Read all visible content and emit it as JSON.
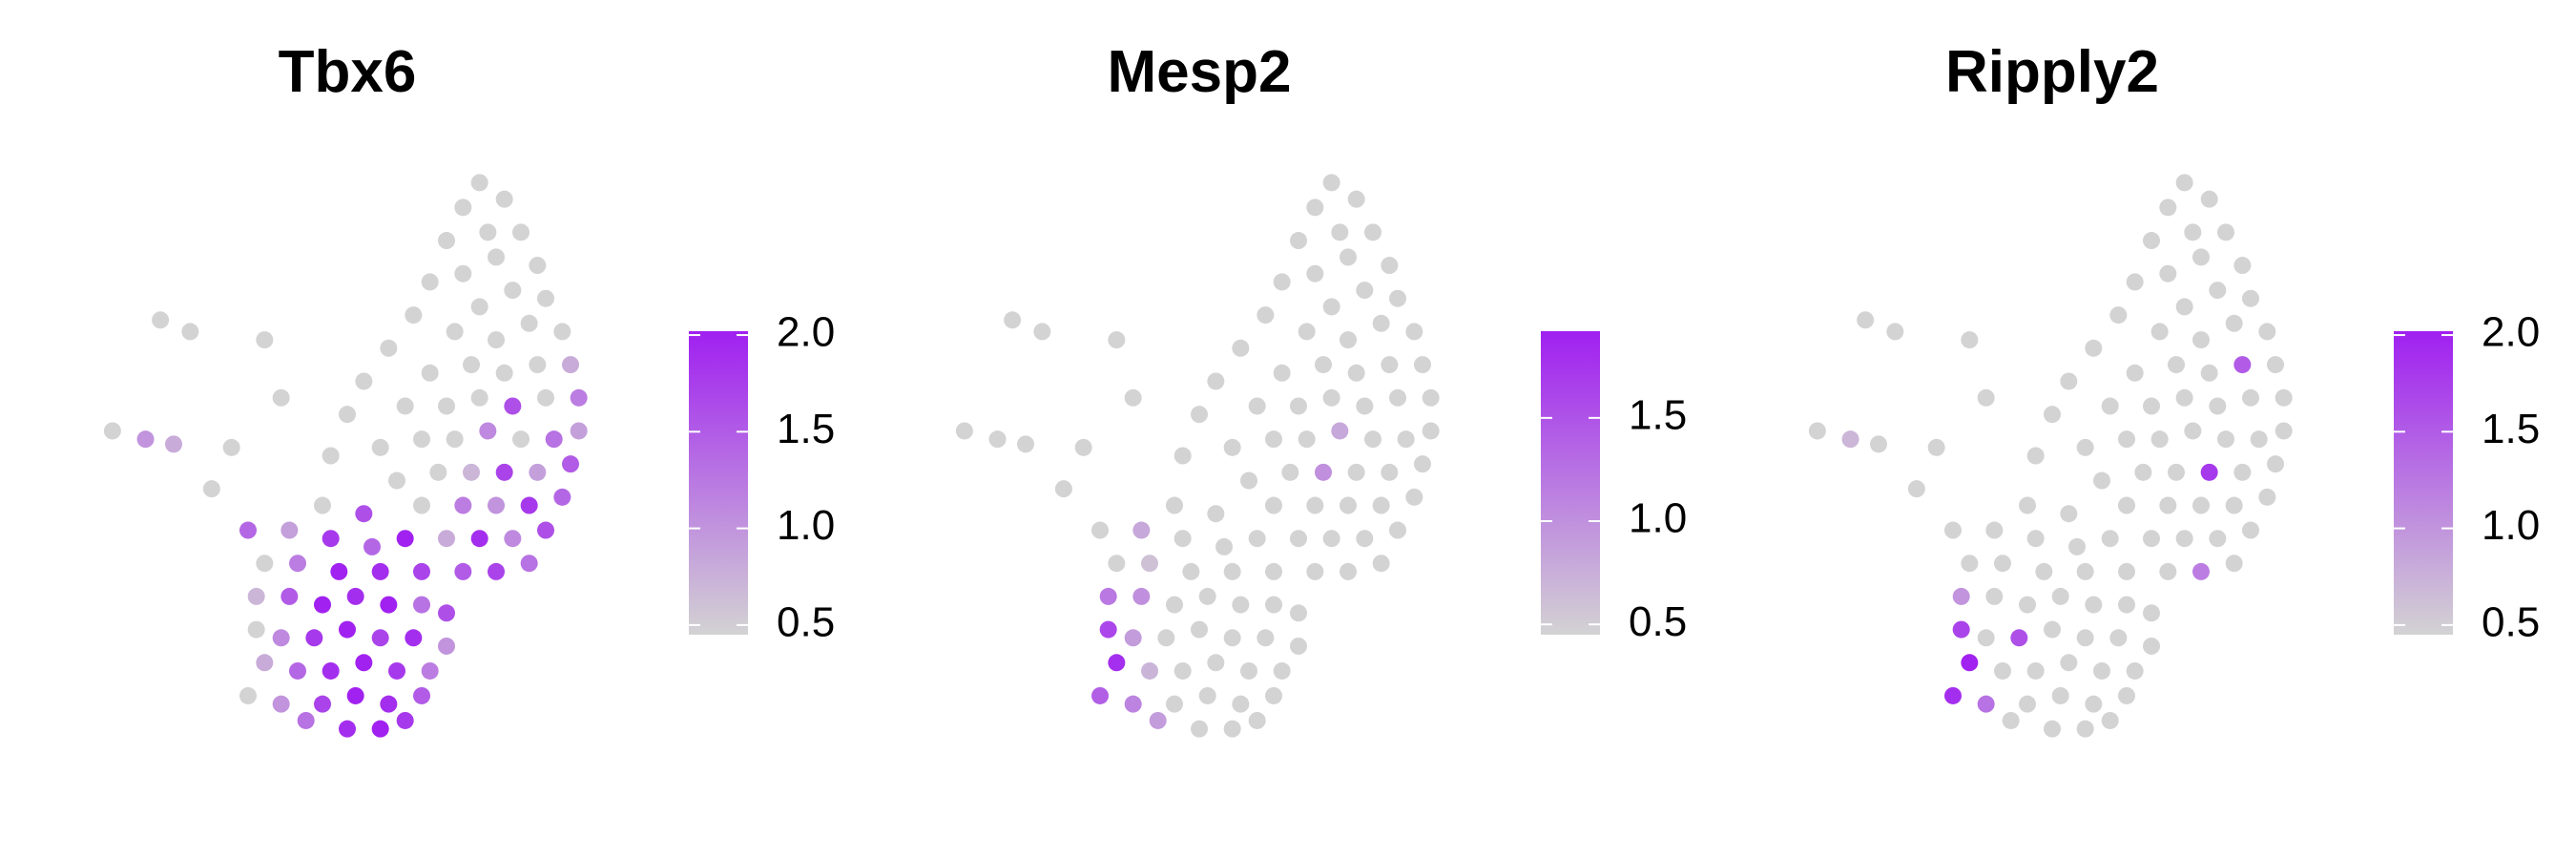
{
  "chart_data": [
    {
      "type": "scatter",
      "title": "Tbx6",
      "x": [
        23,
        24.5,
        22,
        25.5,
        23.5,
        21,
        26.5,
        24,
        22,
        20,
        27,
        25,
        23,
        19,
        28,
        26,
        24,
        21.5,
        17.5,
        28.5,
        26.5,
        24.5,
        22.5,
        20,
        16,
        29,
        27,
        25,
        23,
        21,
        18.5,
        15,
        29,
        27.5,
        25.5,
        23.5,
        21.5,
        19.5,
        17,
        14,
        28.5,
        26.5,
        24.5,
        22.5,
        20.5,
        18,
        28,
        26,
        24,
        22,
        19.5,
        27,
        25,
        23,
        21,
        26,
        24,
        22,
        16,
        13.5,
        11.5,
        14,
        16.5,
        18.5,
        10,
        12,
        14.5,
        17,
        19.5,
        9.5,
        11.5,
        13.5,
        15.5,
        17.5,
        19.5,
        21,
        9.5,
        11,
        13,
        15,
        17,
        19,
        21,
        10,
        12,
        14,
        16,
        18,
        20,
        9,
        11,
        13.5,
        15.5,
        17.5,
        19.5,
        12.5,
        15,
        17,
        18.5,
        0.8,
        3.7,
        2.8,
        4.5,
        6.8,
        10,
        5.5,
        9,
        8,
        11
      ],
      "y": [
        34,
        33,
        32.5,
        31,
        31,
        30.5,
        29,
        29.5,
        28.5,
        28,
        27,
        27.5,
        26.5,
        26,
        25,
        25.5,
        24.5,
        25,
        24,
        23,
        23,
        22.5,
        23,
        22.5,
        22,
        21,
        21,
        20.5,
        21,
        20.5,
        20.5,
        20,
        19,
        18.5,
        18.5,
        19,
        18.5,
        18.5,
        18,
        17.5,
        17,
        16.5,
        16.5,
        16.5,
        16.5,
        16,
        15,
        14.5,
        14.5,
        14.5,
        14.5,
        13,
        12.5,
        12.5,
        12.5,
        11,
        10.5,
        10.5,
        14,
        14.5,
        13,
        12.5,
        12,
        12.5,
        11,
        11,
        10.5,
        10.5,
        10.5,
        9,
        9,
        8.5,
        9,
        8.5,
        8.5,
        8,
        7,
        6.5,
        6.5,
        7,
        6.5,
        6.5,
        6,
        5,
        4.5,
        4.5,
        5,
        4.5,
        4.5,
        3,
        2.5,
        2.5,
        3,
        2.5,
        3,
        1.5,
        1,
        1,
        1.5,
        19,
        25.7,
        18.5,
        18.2,
        15.5,
        24.5,
        25,
        13,
        18,
        21
      ],
      "values": [
        0,
        0,
        0,
        0,
        0,
        0,
        0,
        0,
        0,
        0,
        0,
        0,
        0,
        0,
        0,
        0,
        0,
        0,
        0,
        0.8,
        0,
        0,
        0,
        0,
        0,
        1.2,
        0,
        1.6,
        0,
        0,
        0,
        0,
        0.9,
        1.3,
        0,
        1.1,
        0,
        0,
        0,
        0,
        1.5,
        0.9,
        1.7,
        0.7,
        0,
        0,
        1.4,
        1.8,
        1.0,
        1.2,
        0,
        1.6,
        1.1,
        1.9,
        0.8,
        1.3,
        1.7,
        1.5,
        1.6,
        0,
        0.9,
        1.8,
        1.4,
        2.0,
        0,
        1.2,
        2.0,
        1.9,
        1.7,
        0.7,
        1.5,
        2.0,
        1.9,
        2.0,
        1.3,
        1.6,
        0,
        1.1,
        1.8,
        2.0,
        1.7,
        1.9,
        1.0,
        0.8,
        1.4,
        1.9,
        2.0,
        1.8,
        1.2,
        0,
        1.0,
        1.7,
        2.0,
        1.9,
        1.5,
        1.3,
        1.9,
        2.0,
        1.8,
        0,
        0,
        1.0,
        0.8,
        0,
        0,
        0,
        1.4,
        0,
        0
      ],
      "xlim": [
        0,
        30
      ],
      "ylim": [
        0,
        35
      ],
      "colorbar": {
        "lim": [
          0.45,
          2.02
        ],
        "ticks": [
          0.5,
          {
            "value": 1,
            "label": "1.0"
          },
          1.5,
          {
            "value": 2,
            "label": "2.0"
          }
        ],
        "low_color": "#d3d3d3",
        "high_color": "#a020f0"
      }
    },
    {
      "type": "scatter",
      "title": "Mesp2",
      "x": [
        23,
        24.5,
        22,
        25.5,
        23.5,
        21,
        26.5,
        24,
        22,
        20,
        27,
        25,
        23,
        19,
        28,
        26,
        24,
        21.5,
        17.5,
        28.5,
        26.5,
        24.5,
        22.5,
        20,
        16,
        29,
        27,
        25,
        23,
        21,
        18.5,
        15,
        29,
        27.5,
        25.5,
        23.5,
        21.5,
        19.5,
        17,
        14,
        28.5,
        26.5,
        24.5,
        22.5,
        20.5,
        18,
        28,
        26,
        24,
        22,
        19.5,
        27,
        25,
        23,
        21,
        26,
        24,
        22,
        16,
        13.5,
        11.5,
        14,
        16.5,
        18.5,
        10,
        12,
        14.5,
        17,
        19.5,
        9.5,
        11.5,
        13.5,
        15.5,
        17.5,
        19.5,
        21,
        9.5,
        11,
        13,
        15,
        17,
        19,
        21,
        10,
        12,
        14,
        16,
        18,
        20,
        9,
        11,
        13.5,
        15.5,
        17.5,
        19.5,
        12.5,
        15,
        17,
        18.5,
        0.8,
        3.7,
        2.8,
        4.5,
        6.8,
        10,
        5.5,
        9,
        8,
        11
      ],
      "y": [
        34,
        33,
        32.5,
        31,
        31,
        30.5,
        29,
        29.5,
        28.5,
        28,
        27,
        27.5,
        26.5,
        26,
        25,
        25.5,
        24.5,
        25,
        24,
        23,
        23,
        22.5,
        23,
        22.5,
        22,
        21,
        21,
        20.5,
        21,
        20.5,
        20.5,
        20,
        19,
        18.5,
        18.5,
        19,
        18.5,
        18.5,
        18,
        17.5,
        17,
        16.5,
        16.5,
        16.5,
        16.5,
        16,
        15,
        14.5,
        14.5,
        14.5,
        14.5,
        13,
        12.5,
        12.5,
        12.5,
        11,
        10.5,
        10.5,
        14,
        14.5,
        13,
        12.5,
        12,
        12.5,
        11,
        11,
        10.5,
        10.5,
        10.5,
        9,
        9,
        8.5,
        9,
        8.5,
        8.5,
        8,
        7,
        6.5,
        6.5,
        7,
        6.5,
        6.5,
        6,
        5,
        4.5,
        4.5,
        5,
        4.5,
        4.5,
        3,
        2.5,
        2.5,
        3,
        2.5,
        3,
        1.5,
        1,
        1,
        1.5,
        19,
        25.7,
        18.5,
        18.2,
        15.5,
        24.5,
        25,
        13,
        18,
        21
      ],
      "values": [
        0,
        0,
        0,
        0,
        0,
        0,
        0,
        0,
        0,
        0,
        0,
        0,
        0,
        0,
        0,
        0,
        0,
        0,
        0,
        0,
        0,
        0,
        0,
        0,
        0,
        0,
        0,
        0,
        0,
        0,
        0,
        0,
        0,
        0,
        0,
        0.8,
        0,
        0,
        0,
        0,
        0,
        0,
        0,
        1.0,
        0,
        0,
        0,
        0,
        0,
        0,
        0,
        0,
        0,
        0,
        0,
        0,
        0,
        0,
        0,
        0,
        0.8,
        0,
        0,
        0,
        0,
        0.6,
        0,
        0,
        0,
        1.2,
        1.0,
        0,
        0,
        0,
        0,
        0,
        1.6,
        0.9,
        0,
        0,
        0,
        0,
        0,
        1.8,
        0.7,
        0,
        0,
        0,
        0,
        1.4,
        1.1,
        0,
        0,
        0,
        0,
        0.9,
        0,
        0,
        0,
        0,
        0,
        0,
        0,
        0,
        0,
        0,
        0,
        0,
        0
      ],
      "xlim": [
        0,
        30
      ],
      "ylim": [
        0,
        35
      ],
      "colorbar": {
        "lim": [
          0.45,
          1.92
        ],
        "ticks": [
          0.5,
          {
            "value": 1,
            "label": "1.0"
          },
          1.5
        ],
        "low_color": "#d3d3d3",
        "high_color": "#a020f0"
      }
    },
    {
      "type": "scatter",
      "title": "Ripply2",
      "x": [
        23,
        24.5,
        22,
        25.5,
        23.5,
        21,
        26.5,
        24,
        22,
        20,
        27,
        25,
        23,
        19,
        28,
        26,
        24,
        21.5,
        17.5,
        28.5,
        26.5,
        24.5,
        22.5,
        20,
        16,
        29,
        27,
        25,
        23,
        21,
        18.5,
        15,
        29,
        27.5,
        25.5,
        23.5,
        21.5,
        19.5,
        17,
        14,
        28.5,
        26.5,
        24.5,
        22.5,
        20.5,
        18,
        28,
        26,
        24,
        22,
        19.5,
        27,
        25,
        23,
        21,
        26,
        24,
        22,
        16,
        13.5,
        11.5,
        14,
        16.5,
        18.5,
        10,
        12,
        14.5,
        17,
        19.5,
        9.5,
        11.5,
        13.5,
        15.5,
        17.5,
        19.5,
        21,
        9.5,
        11,
        13,
        15,
        17,
        19,
        21,
        10,
        12,
        14,
        16,
        18,
        20,
        9,
        11,
        13.5,
        15.5,
        17.5,
        19.5,
        12.5,
        15,
        17,
        18.5,
        0.8,
        3.7,
        2.8,
        4.5,
        6.8,
        10,
        5.5,
        9,
        8,
        11
      ],
      "y": [
        34,
        33,
        32.5,
        31,
        31,
        30.5,
        29,
        29.5,
        28.5,
        28,
        27,
        27.5,
        26.5,
        26,
        25,
        25.5,
        24.5,
        25,
        24,
        23,
        23,
        22.5,
        23,
        22.5,
        22,
        21,
        21,
        20.5,
        21,
        20.5,
        20.5,
        20,
        19,
        18.5,
        18.5,
        19,
        18.5,
        18.5,
        18,
        17.5,
        17,
        16.5,
        16.5,
        16.5,
        16.5,
        16,
        15,
        14.5,
        14.5,
        14.5,
        14.5,
        13,
        12.5,
        12.5,
        12.5,
        11,
        10.5,
        10.5,
        14,
        14.5,
        13,
        12.5,
        12,
        12.5,
        11,
        11,
        10.5,
        10.5,
        10.5,
        9,
        9,
        8.5,
        9,
        8.5,
        8.5,
        8,
        7,
        6.5,
        6.5,
        7,
        6.5,
        6.5,
        6,
        5,
        4.5,
        4.5,
        5,
        4.5,
        4.5,
        3,
        2.5,
        2.5,
        3,
        2.5,
        3,
        1.5,
        1,
        1,
        1.5,
        19,
        25.7,
        18.5,
        18.2,
        15.5,
        24.5,
        25,
        13,
        18,
        21
      ],
      "values": [
        0,
        0,
        0,
        0,
        0,
        0,
        0,
        0,
        0,
        0,
        0,
        0,
        0,
        0,
        0,
        0,
        0,
        0,
        0,
        0,
        1.5,
        0,
        0,
        0,
        0,
        0,
        0,
        0,
        0,
        0,
        0,
        0,
        0,
        0,
        0,
        0,
        0,
        0,
        0,
        0,
        0,
        0,
        1.8,
        0,
        0,
        0,
        0,
        0,
        0,
        0,
        0,
        0,
        0,
        0,
        0,
        0,
        1.2,
        0,
        0,
        0,
        0,
        0,
        0,
        0,
        0,
        0,
        0,
        0,
        0,
        1.0,
        0,
        0,
        0,
        0,
        0,
        0,
        1.7,
        0,
        1.6,
        0,
        0,
        0,
        0,
        2.0,
        0,
        0,
        0,
        0,
        0,
        1.9,
        1.3,
        0,
        0,
        0,
        0,
        0,
        0,
        0,
        0,
        0,
        0,
        0.7,
        0,
        0,
        0,
        0,
        0,
        0,
        0
      ],
      "xlim": [
        0,
        30
      ],
      "ylim": [
        0,
        35
      ],
      "colorbar": {
        "lim": [
          0.45,
          2.02
        ],
        "ticks": [
          0.5,
          {
            "value": 1,
            "label": "1.0"
          },
          1.5,
          {
            "value": 2,
            "label": "2.0"
          }
        ],
        "low_color": "#d3d3d3",
        "high_color": "#a020f0"
      }
    }
  ]
}
